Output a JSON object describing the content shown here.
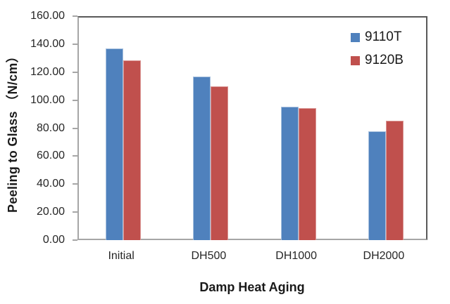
{
  "chart_data": {
    "type": "bar",
    "title": "",
    "categories": [
      "Initial",
      "DH500",
      "DH1000",
      "DH2000"
    ],
    "series": [
      {
        "name": "9110T",
        "color": "#4F81BD",
        "edge_color": "#A9C2DF",
        "values": [
          137,
          117,
          95.5,
          77.5
        ]
      },
      {
        "name": "9120B",
        "color": "#C0504D",
        "edge_color": "#DA9694",
        "values": [
          128.5,
          110,
          94.5,
          85.5
        ]
      }
    ],
    "xlabel": "Damp Heat Aging",
    "ylabel": "Peeling to Glass （N/cm）",
    "ylim": [
      0,
      160
    ],
    "ytick_step": 20,
    "ytick_labels": [
      "0.00",
      "20.00",
      "40.00",
      "60.00",
      "80.00",
      "100.00",
      "120.00",
      "140.00",
      "160.00"
    ],
    "grid": false,
    "legend_position": "inside-top-right"
  },
  "colors": {
    "plot_border": "#595959",
    "axis_line": "#A6A6A6",
    "text": "#262626"
  }
}
